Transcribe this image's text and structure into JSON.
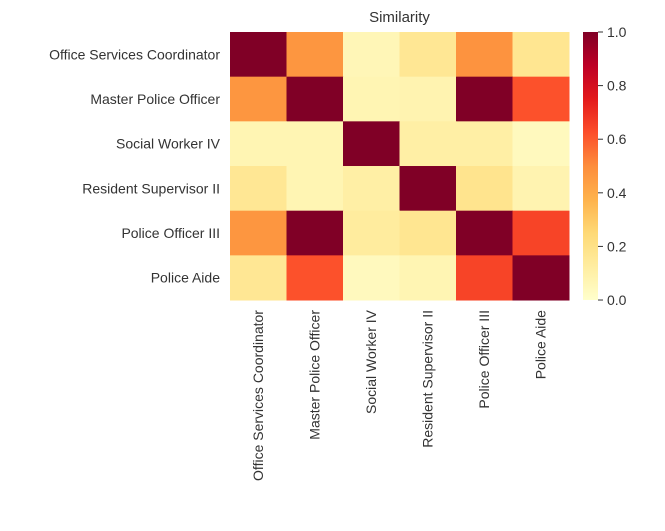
{
  "chart_data": {
    "type": "heatmap",
    "title": "Similarity",
    "xlabel": "",
    "ylabel": "",
    "rows": [
      "Office Services Coordinator",
      "Master Police Officer",
      "Social Worker IV",
      "Resident Supervisor II",
      "Police Officer III",
      "Police Aide"
    ],
    "columns": [
      "Office Services Coordinator",
      "Master Police Officer",
      "Social Worker IV",
      "Resident Supervisor II",
      "Police Officer III",
      "Police Aide"
    ],
    "values": [
      [
        1.0,
        0.47,
        0.06,
        0.16,
        0.48,
        0.17
      ],
      [
        0.47,
        1.0,
        0.07,
        0.08,
        1.0,
        0.62
      ],
      [
        0.07,
        0.07,
        1.0,
        0.11,
        0.11,
        0.04
      ],
      [
        0.16,
        0.07,
        0.11,
        1.0,
        0.18,
        0.08
      ],
      [
        0.47,
        1.0,
        0.13,
        0.17,
        1.0,
        0.65
      ],
      [
        0.16,
        0.62,
        0.04,
        0.07,
        0.65,
        1.0
      ]
    ],
    "colorbar": {
      "colormap": "YlOrRd",
      "range": [
        0.0,
        1.0
      ],
      "ticks": [
        0.0,
        0.2,
        0.4,
        0.6,
        0.8,
        1.0
      ],
      "tick_labels": [
        "0.0",
        "0.2",
        "0.4",
        "0.6",
        "0.8",
        "1.0"
      ]
    },
    "grid": false
  }
}
